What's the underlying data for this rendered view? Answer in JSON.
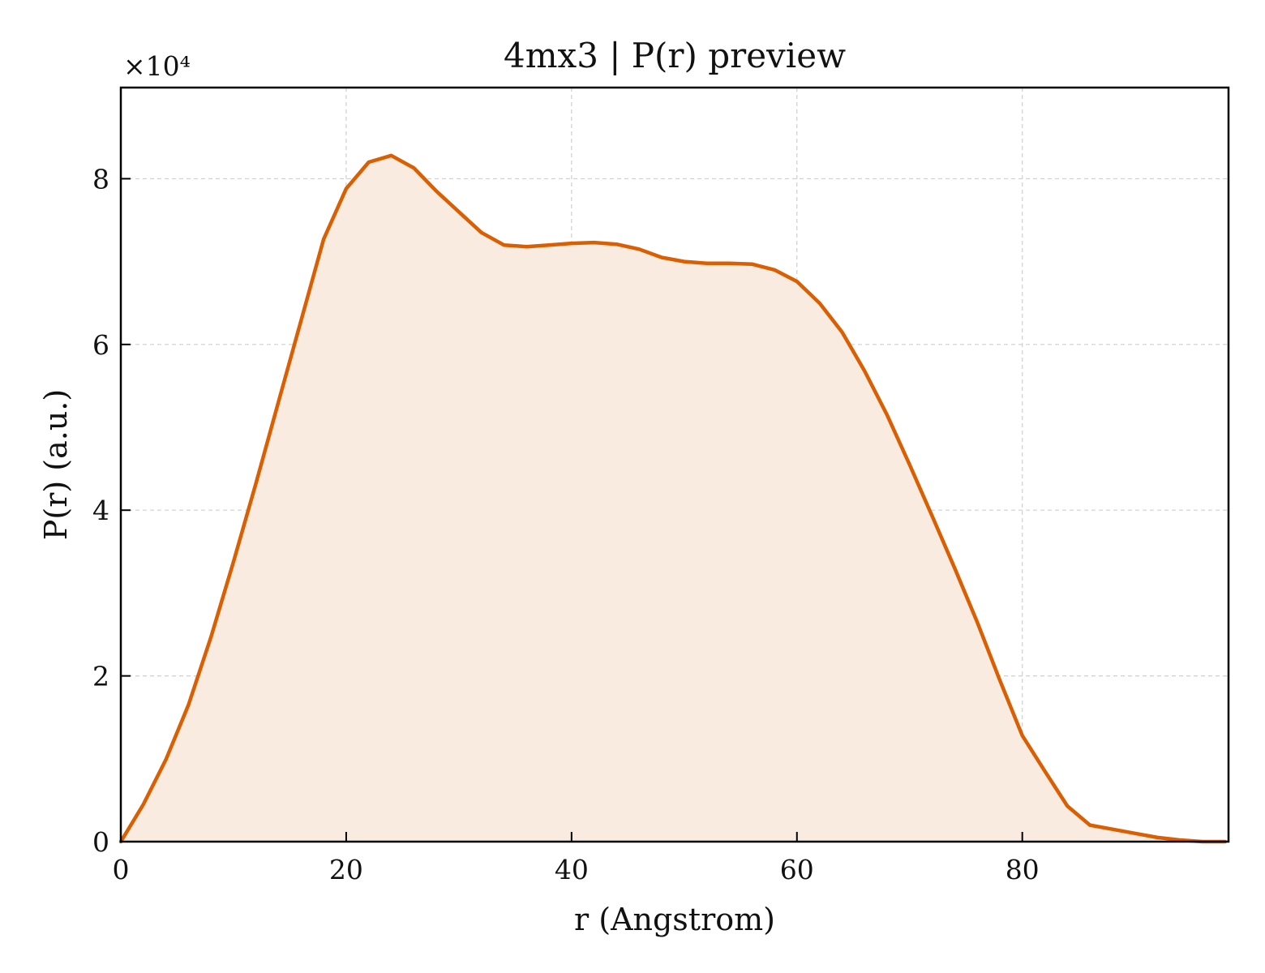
{
  "chart_data": {
    "type": "area",
    "title": "4mx3 | P(r) preview",
    "xlabel": "r (Angstrom)",
    "ylabel": "P(r) (a.u.)",
    "y_multiplier_label": "×10⁴",
    "y_scale": 10000,
    "xlim": [
      0,
      98.3
    ],
    "ylim": [
      0,
      91000
    ],
    "x_ticks": [
      0,
      20,
      40,
      60,
      80
    ],
    "y_ticks": [
      0,
      20000,
      40000,
      60000,
      80000
    ],
    "y_tick_labels": [
      "0",
      "2",
      "4",
      "6",
      "8"
    ],
    "grid": true,
    "line_color": "#d95f02",
    "fill_color": "#f9ebe0",
    "series": [
      {
        "x": [
          0,
          2,
          4,
          6,
          8,
          10,
          12,
          14,
          16,
          18,
          20,
          22,
          24,
          26,
          28,
          30,
          32,
          34,
          36,
          38,
          40,
          42,
          44,
          46,
          48,
          50,
          52,
          54,
          56,
          58,
          60,
          62,
          64,
          66,
          68,
          70,
          72,
          74,
          76,
          78,
          80,
          82,
          84,
          86,
          88,
          90,
          92,
          94,
          96,
          98
        ],
        "y": [
          0,
          4500,
          9900,
          16500,
          24700,
          33800,
          43300,
          53100,
          62900,
          72700,
          78800,
          82000,
          82800,
          81300,
          78500,
          76000,
          73500,
          72000,
          71800,
          72000,
          72200,
          72300,
          72100,
          71500,
          70500,
          70000,
          69800,
          69800,
          69700,
          69000,
          67600,
          65000,
          61500,
          56800,
          51500,
          45500,
          39300,
          33000,
          26500,
          19500,
          12800,
          8500,
          4300,
          2000,
          1500,
          1000,
          500,
          200,
          0,
          0
        ]
      }
    ]
  }
}
